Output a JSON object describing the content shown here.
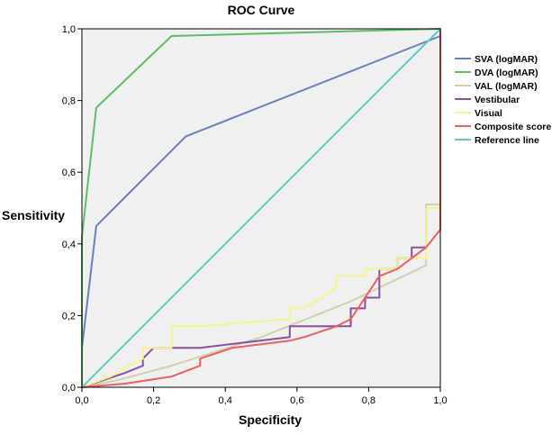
{
  "chart_data": {
    "type": "line",
    "title": "ROC Curve",
    "xlabel": "Specificity",
    "ylabel": "Sensitivity",
    "xlim": [
      0,
      1
    ],
    "ylim": [
      0,
      1
    ],
    "xticks": [
      "0,0",
      "0,2",
      "0,4",
      "0,6",
      "0,8",
      "1,0"
    ],
    "yticks": [
      "0,0",
      "0,2",
      "0,4",
      "0,6",
      "0,8",
      "1,0"
    ],
    "grid": false,
    "legend_position": "right",
    "series": [
      {
        "name": "SVA (logMAR)",
        "color": "#6a7fc1",
        "x": [
          0,
          0,
          0.04,
          0.29,
          1.0
        ],
        "y": [
          0,
          0.11,
          0.45,
          0.7,
          0.98
        ]
      },
      {
        "name": "DVA (logMAR)",
        "color": "#5bbf68",
        "x": [
          0,
          0,
          0.04,
          0.25,
          1.0
        ],
        "y": [
          0,
          0.42,
          0.78,
          0.98,
          1.0
        ]
      },
      {
        "name": "VAL (logMAR)",
        "color": "#d3cfae",
        "x": [
          0,
          0.1,
          0.25,
          0.5,
          0.75,
          0.96,
          0.96,
          1.0,
          1.0
        ],
        "y": [
          0,
          0.02,
          0.06,
          0.14,
          0.24,
          0.34,
          0.51,
          0.51,
          1.0
        ]
      },
      {
        "name": "Vestibular",
        "color": "#8b4ea0",
        "x": [
          0,
          0.12,
          0.17,
          0.17,
          0.2,
          0.2,
          0.33,
          0.58,
          0.58,
          0.75,
          0.75,
          0.79,
          0.79,
          0.83,
          0.83,
          0.88,
          0.88,
          0.92,
          0.92,
          0.96,
          0.96,
          1.0,
          1.0
        ],
        "y": [
          0,
          0.04,
          0.06,
          0.08,
          0.11,
          0.11,
          0.11,
          0.14,
          0.17,
          0.17,
          0.22,
          0.22,
          0.25,
          0.25,
          0.33,
          0.33,
          0.36,
          0.36,
          0.39,
          0.39,
          0.5,
          0.5,
          1.0
        ]
      },
      {
        "name": "Visual",
        "color": "#f5f58a",
        "x": [
          0,
          0.08,
          0.13,
          0.17,
          0.17,
          0.25,
          0.25,
          0.33,
          0.58,
          0.58,
          0.62,
          0.67,
          0.71,
          0.71,
          0.79,
          0.79,
          0.88,
          0.88,
          0.96,
          0.96,
          1.0,
          1.0
        ],
        "y": [
          0,
          0.03,
          0.06,
          0.08,
          0.11,
          0.11,
          0.17,
          0.17,
          0.19,
          0.22,
          0.22,
          0.25,
          0.28,
          0.31,
          0.31,
          0.33,
          0.33,
          0.36,
          0.36,
          0.5,
          0.5,
          1.0
        ]
      },
      {
        "name": "Composite score",
        "color": "#ee5f5f",
        "x": [
          0,
          0.12,
          0.25,
          0.33,
          0.33,
          0.42,
          0.58,
          0.62,
          0.71,
          0.75,
          0.79,
          0.83,
          0.88,
          0.92,
          0.96,
          1.0,
          1.0
        ],
        "y": [
          0,
          0.01,
          0.03,
          0.06,
          0.08,
          0.11,
          0.13,
          0.14,
          0.17,
          0.19,
          0.25,
          0.31,
          0.33,
          0.36,
          0.39,
          0.44,
          1.0
        ]
      },
      {
        "name": "Reference line",
        "color": "#63c8c4",
        "x": [
          0,
          1
        ],
        "y": [
          0,
          1
        ]
      }
    ]
  }
}
